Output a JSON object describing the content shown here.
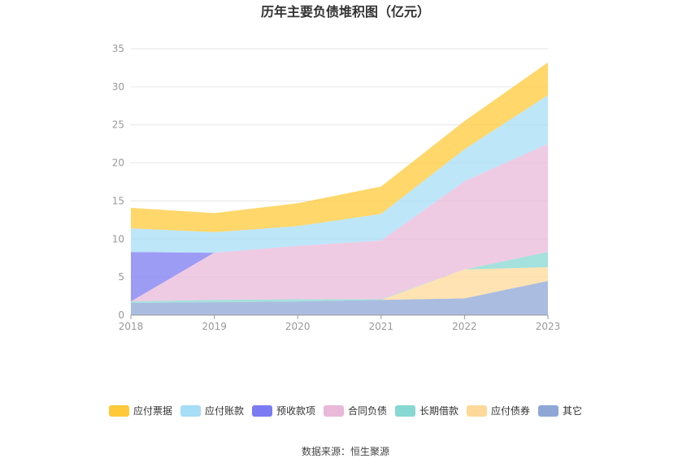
{
  "chart_data": {
    "type": "area",
    "stacked": true,
    "title": "历年主要负债堆积图（亿元）",
    "x": [
      "2018",
      "2019",
      "2020",
      "2021",
      "2022",
      "2023"
    ],
    "ylim": [
      0,
      35
    ],
    "yticks": [
      0,
      5,
      10,
      15,
      20,
      25,
      30,
      35
    ],
    "grid": true,
    "legend_position": "bottom",
    "series": [
      {
        "name": "其它",
        "color": "#8EA7D6",
        "values": [
          1.6,
          1.7,
          1.8,
          2.0,
          2.2,
          4.5
        ]
      },
      {
        "name": "应付债券",
        "color": "#FFD99A",
        "values": [
          0,
          0,
          0,
          0,
          3.8,
          1.8
        ]
      },
      {
        "name": "长期借款",
        "color": "#87D7D2",
        "values": [
          0.2,
          0.3,
          0.3,
          0.1,
          0,
          2.0
        ]
      },
      {
        "name": "合同负债",
        "color": "#E9B9DA",
        "values": [
          0,
          6.2,
          7.0,
          7.7,
          11.6,
          14.2
        ]
      },
      {
        "name": "预收款项",
        "color": "#7C7BF1",
        "values": [
          6.5,
          0,
          0,
          0,
          0,
          0
        ]
      },
      {
        "name": "应付账款",
        "color": "#A7DDF7",
        "values": [
          3.1,
          2.7,
          2.6,
          3.5,
          4.2,
          6.4
        ]
      },
      {
        "name": "应付票据",
        "color": "#FFC93A",
        "values": [
          2.7,
          2.5,
          3.0,
          3.6,
          3.7,
          4.3
        ]
      }
    ],
    "legend_order": [
      "应付票据",
      "应付账款",
      "预收款项",
      "合同负债",
      "长期借款",
      "应付债券",
      "其它"
    ]
  },
  "source_text": "数据来源：恒生聚源"
}
